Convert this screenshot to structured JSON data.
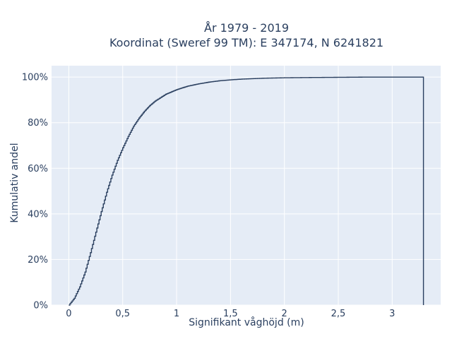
{
  "chart_data": {
    "type": "line",
    "title_lines": [
      "År 1979 - 2019",
      "Koordinat (Sweref 99 TM): E 347174, N 6241821"
    ],
    "xlabel": "Signifikant våghöjd (m)",
    "ylabel": "Kumulativ andel",
    "xlim": [
      -0.16,
      3.45
    ],
    "ylim": [
      0,
      1.05
    ],
    "x_ticks": [
      0,
      0.5,
      1,
      1.5,
      2,
      2.5,
      3
    ],
    "x_tick_labels": [
      "0",
      "0,5",
      "1",
      "1,5",
      "2",
      "2,5",
      "3"
    ],
    "y_ticks": [
      0,
      0.2,
      0.4,
      0.6,
      0.8,
      1.0
    ],
    "y_tick_labels": [
      "0%",
      "20%",
      "40%",
      "60%",
      "80%",
      "100%"
    ],
    "line_shape": "step",
    "series": [
      {
        "color": "#2a3f5f",
        "x": [
          0,
          0.05,
          0.1,
          0.15,
          0.2,
          0.25,
          0.3,
          0.35,
          0.4,
          0.45,
          0.5,
          0.55,
          0.6,
          0.65,
          0.7,
          0.75,
          0.8,
          0.85,
          0.9,
          0.95,
          1.0,
          1.1,
          1.2,
          1.3,
          1.4,
          1.5,
          1.6,
          1.8,
          2.0,
          2.2,
          2.5,
          2.8,
          3.0,
          3.29,
          3.29
        ],
        "y": [
          0,
          0.03,
          0.08,
          0.145,
          0.23,
          0.32,
          0.41,
          0.495,
          0.57,
          0.635,
          0.69,
          0.74,
          0.785,
          0.82,
          0.85,
          0.875,
          0.895,
          0.91,
          0.925,
          0.935,
          0.945,
          0.96,
          0.97,
          0.978,
          0.984,
          0.988,
          0.991,
          0.995,
          0.997,
          0.998,
          0.999,
          1.0,
          1.0,
          1.0,
          0
        ]
      }
    ]
  }
}
